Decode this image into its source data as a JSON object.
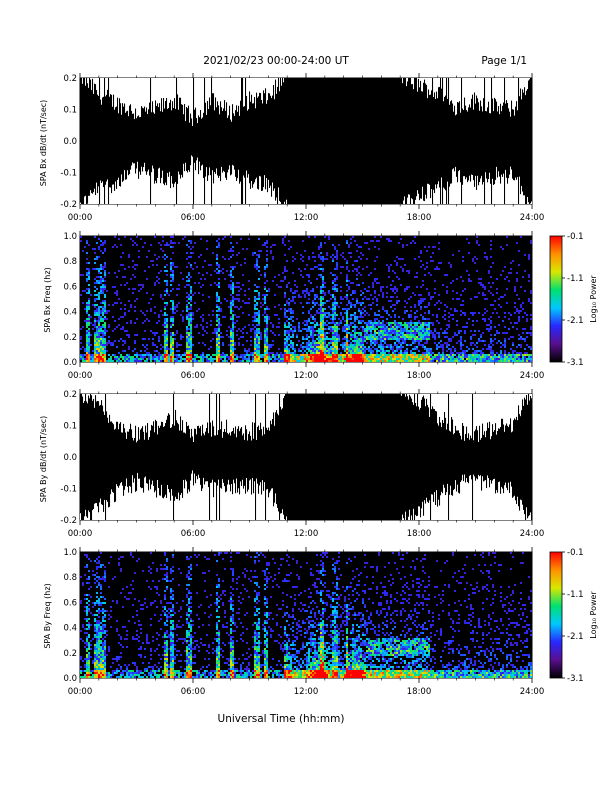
{
  "header": {
    "title": "2021/02/23  00:00-24:00 UT",
    "page": "Page 1/1"
  },
  "xaxis": {
    "label": "Universal Time (hh:mm)",
    "ticks": [
      "00:00",
      "06:00",
      "12:00",
      "18:00",
      "24:00"
    ],
    "range_hours": [
      0,
      24
    ]
  },
  "colorbar": {
    "label": "Log₁₀ Power",
    "ticks": [
      "-0.1",
      "-1.1",
      "-2.1",
      "-3.1"
    ],
    "range": [
      -3.1,
      -0.1
    ],
    "colors": [
      "#000000",
      "#5a0f8c",
      "#2828ff",
      "#00c8ff",
      "#00e070",
      "#d8e800",
      "#ff9000",
      "#ff0000"
    ]
  },
  "chart_data": [
    {
      "type": "area",
      "ylabel": "SPA Bx dB/dt (nT/sec)",
      "ylim": [
        -0.2,
        0.2
      ],
      "yticks": [
        "-0.2",
        "-0.1",
        "0.0",
        "0.1",
        "0.2"
      ],
      "x": [
        0,
        1,
        2,
        3,
        4,
        5,
        6,
        7,
        8,
        9,
        10,
        11,
        12,
        13,
        14,
        15,
        16,
        17,
        18,
        19,
        20,
        21,
        22,
        23,
        24
      ],
      "upper": [
        0.2,
        0.14,
        0.11,
        0.08,
        0.09,
        0.12,
        0.06,
        0.12,
        0.08,
        0.12,
        0.13,
        0.2,
        0.2,
        0.2,
        0.2,
        0.2,
        0.2,
        0.2,
        0.17,
        0.14,
        0.1,
        0.12,
        0.1,
        0.09,
        0.2
      ],
      "lower": [
        -0.2,
        -0.14,
        -0.12,
        -0.08,
        -0.1,
        -0.12,
        -0.06,
        -0.11,
        -0.08,
        -0.12,
        -0.13,
        -0.2,
        -0.2,
        -0.2,
        -0.2,
        -0.2,
        -0.2,
        -0.2,
        -0.17,
        -0.14,
        -0.1,
        -0.12,
        -0.1,
        -0.1,
        -0.2
      ]
    },
    {
      "type": "heatmap",
      "ylabel": "SPA Bx Freq (hz)",
      "ylim": [
        0,
        1.0
      ],
      "yticks": [
        "0.0",
        "0.2",
        "0.4",
        "0.6",
        "0.8",
        "1.0"
      ]
    },
    {
      "type": "area",
      "ylabel": "SPA By dB/dt (nT/sec)",
      "ylim": [
        -0.2,
        0.2
      ],
      "yticks": [
        "-0.2",
        "-0.1",
        "0.0",
        "0.1",
        "0.2"
      ],
      "x": [
        0,
        1,
        2,
        3,
        4,
        5,
        6,
        7,
        8,
        9,
        10,
        11,
        12,
        13,
        14,
        15,
        16,
        17,
        18,
        19,
        20,
        21,
        22,
        23,
        24
      ],
      "upper": [
        0.2,
        0.15,
        0.09,
        0.06,
        0.08,
        0.12,
        0.06,
        0.08,
        0.08,
        0.07,
        0.08,
        0.2,
        0.2,
        0.2,
        0.2,
        0.2,
        0.2,
        0.2,
        0.17,
        0.12,
        0.08,
        0.06,
        0.08,
        0.1,
        0.2
      ],
      "lower": [
        -0.2,
        -0.15,
        -0.1,
        -0.07,
        -0.09,
        -0.12,
        -0.06,
        -0.09,
        -0.08,
        -0.08,
        -0.09,
        -0.2,
        -0.2,
        -0.2,
        -0.2,
        -0.2,
        -0.2,
        -0.2,
        -0.17,
        -0.12,
        -0.08,
        -0.07,
        -0.08,
        -0.1,
        -0.2
      ]
    },
    {
      "type": "heatmap",
      "ylabel": "SPA By Freq (hz)",
      "ylim": [
        0,
        1.0
      ],
      "yticks": [
        "0.0",
        "0.2",
        "0.4",
        "0.6",
        "0.8",
        "1.0"
      ]
    }
  ]
}
